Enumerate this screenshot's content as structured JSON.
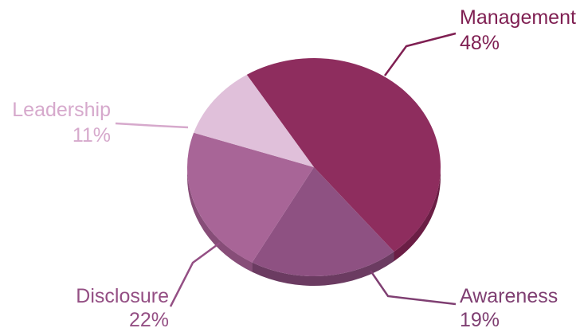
{
  "chart_data": {
    "type": "pie",
    "style": "3d",
    "slices": [
      {
        "label": "Management",
        "value": 48,
        "value_label": "48%",
        "color": "#8e2d5e",
        "side_color": "#6b1e45",
        "label_color": "#7f1f52"
      },
      {
        "label": "Awareness",
        "value": 19,
        "value_label": "19%",
        "color": "#8e5182",
        "side_color": "#6b3b61",
        "label_color": "#7f3f72"
      },
      {
        "label": "Disclosure",
        "value": 22,
        "value_label": "22%",
        "color": "#a86597",
        "side_color": "#874d78",
        "label_color": "#944f84"
      },
      {
        "label": "Leadership",
        "value": 11,
        "value_label": "11%",
        "color": "#e0c0da",
        "side_color": "#c9a2c1",
        "label_color": "#d6a9cc"
      }
    ]
  }
}
